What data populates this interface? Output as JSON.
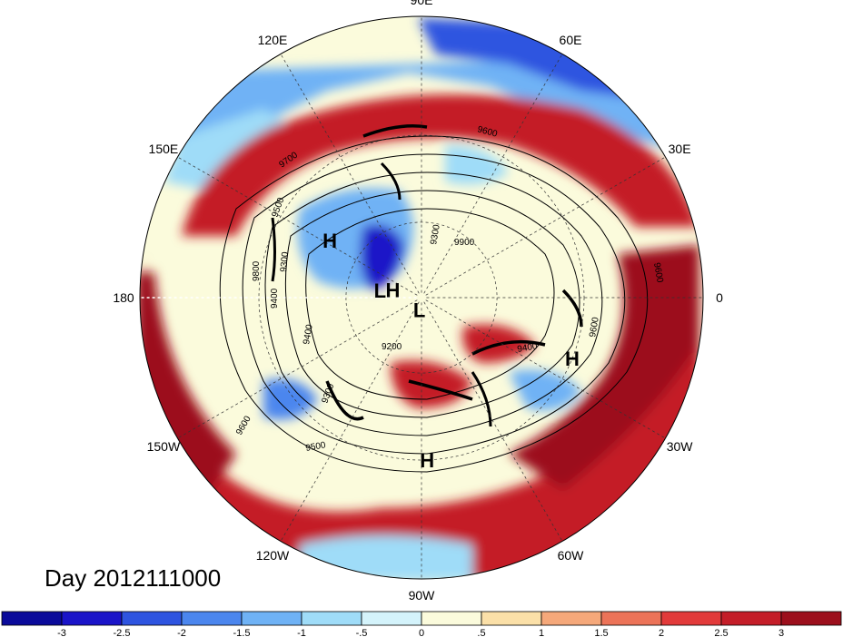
{
  "title": "Day 2012111000",
  "map": {
    "projection": "north polar stereographic",
    "longitude_labels": [
      {
        "lon": 90,
        "label": "90E"
      },
      {
        "lon": 60,
        "label": "60E"
      },
      {
        "lon": 30,
        "label": "30E"
      },
      {
        "lon": 0,
        "label": "0"
      },
      {
        "lon": -30,
        "label": "30W"
      },
      {
        "lon": -60,
        "label": "60W"
      },
      {
        "lon": -90,
        "label": "90W"
      },
      {
        "lon": -120,
        "label": "120W"
      },
      {
        "lon": -150,
        "label": "150W"
      },
      {
        "lon": 180,
        "label": "180"
      },
      {
        "lon": 150,
        "label": "150E"
      },
      {
        "lon": 120,
        "label": "120E"
      }
    ],
    "pressure_centers": [
      {
        "type": "H",
        "lon": 148,
        "lat": 48
      },
      {
        "type": "H",
        "lon": 165,
        "lat": 78
      },
      {
        "type": "L",
        "lon": 170,
        "lat": 73
      },
      {
        "type": "H",
        "lon": -22,
        "lat": 30
      },
      {
        "type": "H",
        "lon": -88,
        "lat": 30
      },
      {
        "type": "L",
        "lon": -100,
        "lat": 85
      }
    ],
    "contour_labels": [
      "9700",
      "9600",
      "9500",
      "9400",
      "9300",
      "9200",
      "9800",
      "9900",
      "9600",
      "9400",
      "9600",
      "9300",
      "9500",
      "9600",
      "9300",
      "9400"
    ]
  },
  "colorbar": {
    "tick_labels": [
      "-3",
      "-2.5",
      "-2",
      "-1.5",
      "-1",
      "-.5",
      "0",
      ".5",
      "1",
      "1.5",
      "2",
      "2.5",
      "3"
    ],
    "colors": [
      "#1a14c8",
      "#2e54e0",
      "#4b86ee",
      "#6fb2f5",
      "#9fdcf8",
      "#d4f3fb",
      "#fbfbdc",
      "#fbe0a8",
      "#f5a87a",
      "#ec7358",
      "#e23a3a",
      "#c41d28",
      "#9c0f1c"
    ]
  }
}
